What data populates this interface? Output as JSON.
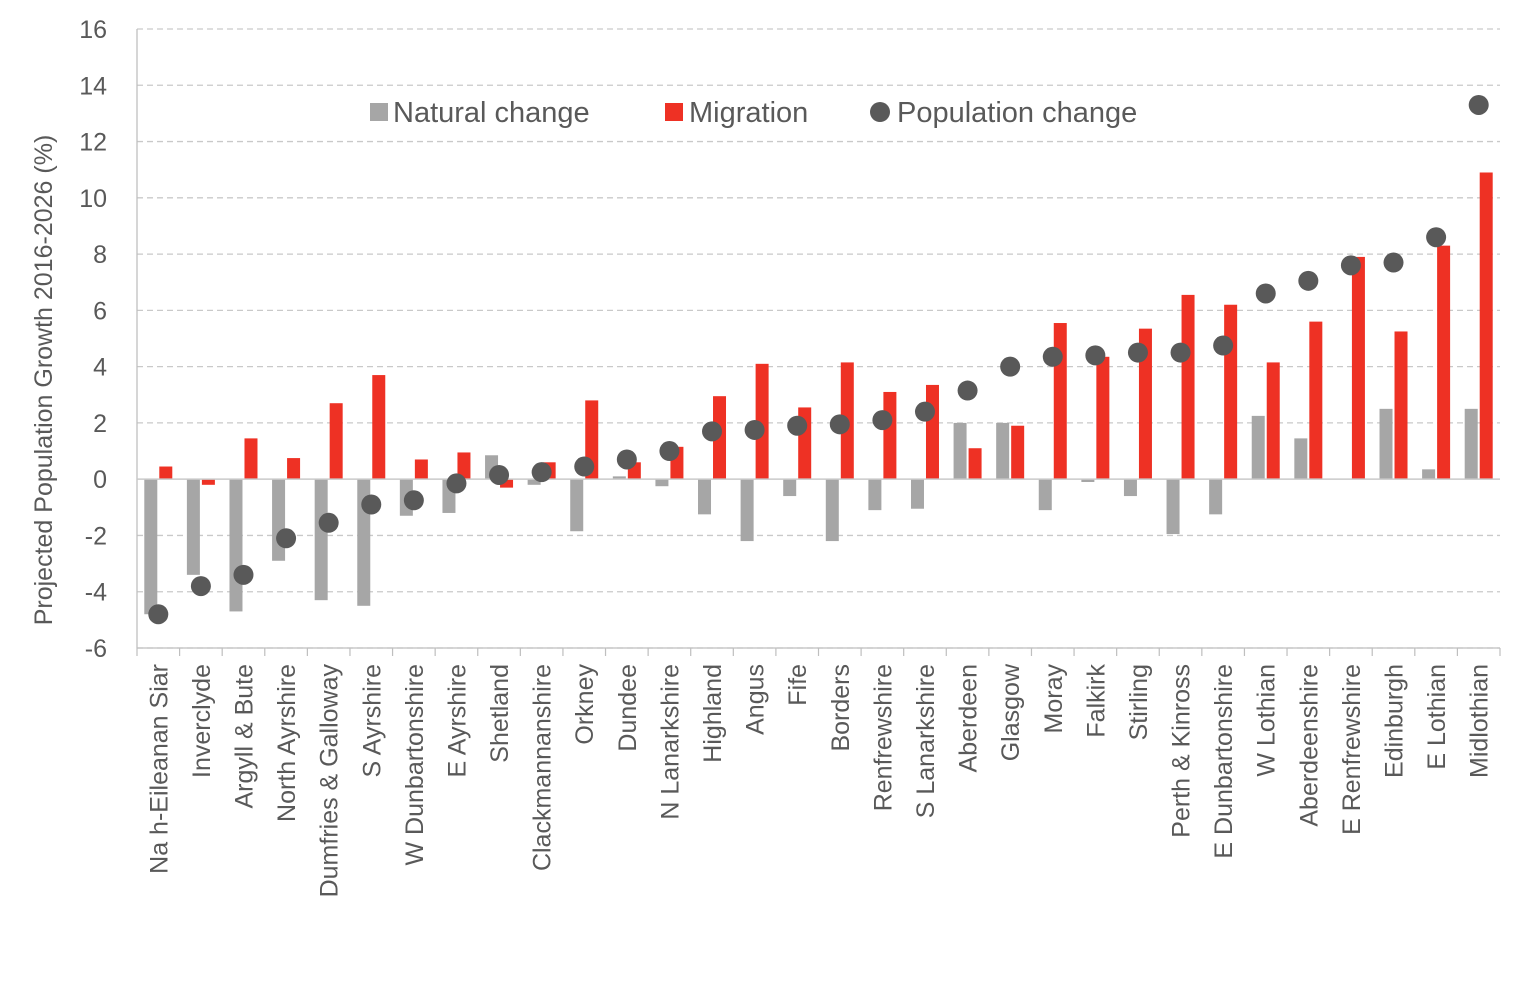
{
  "chart_data": {
    "type": "bar",
    "ylabel": "Projected  Population  Growth 2016-2026 (%)",
    "xlabel": "",
    "ylim": [
      -6,
      16
    ],
    "yticks": [
      -6,
      -4,
      -2,
      0,
      2,
      4,
      6,
      8,
      10,
      12,
      14,
      16
    ],
    "grid": "horizontal dashed",
    "legend_position": "top",
    "categories": [
      "Na h-Eileanan Siar",
      "Inverclyde",
      "Argyll & Bute",
      "North Ayrshire",
      "Dumfries & Galloway",
      "S Ayrshire",
      "W Dunbartonshire",
      "E Ayrshire",
      "Shetland",
      "Clackmannanshire",
      "Orkney",
      "Dundee",
      "N Lanarkshire",
      "Highland",
      "Angus",
      "Fife",
      "Borders",
      "Renfrewshire",
      "S Lanarkshire",
      "Aberdeen",
      "Glasgow",
      "Moray",
      "Falkirk",
      "Stirling",
      "Perth & Kinross",
      "E Dunbartonshire",
      "W Lothian",
      "Aberdeenshire",
      "E Renfrewshire",
      "Edinburgh",
      "E Lothian",
      "Midlothian"
    ],
    "series": [
      {
        "name": "Natural change",
        "kind": "bar",
        "color": "#a6a6a6",
        "values": [
          -4.8,
          -3.4,
          -4.7,
          -2.9,
          -4.3,
          -4.5,
          -1.3,
          -1.2,
          0.85,
          -0.2,
          -1.85,
          0.1,
          -0.25,
          -1.25,
          -2.2,
          -0.6,
          -2.2,
          -1.1,
          -1.05,
          2.0,
          2.0,
          -1.1,
          -0.1,
          -0.6,
          -1.95,
          -1.25,
          2.25,
          1.45,
          0.0,
          2.5,
          0.35,
          2.5
        ]
      },
      {
        "name": "Migration",
        "kind": "bar",
        "color": "#ee3124",
        "values": [
          0.45,
          -0.2,
          1.45,
          0.75,
          2.7,
          3.7,
          0.7,
          0.95,
          -0.3,
          0.6,
          2.8,
          0.6,
          1.15,
          2.95,
          4.1,
          2.55,
          4.15,
          3.1,
          3.35,
          1.1,
          1.9,
          5.55,
          4.35,
          5.35,
          6.55,
          6.2,
          4.15,
          5.6,
          7.9,
          5.25,
          8.3,
          10.9
        ]
      },
      {
        "name": "Population change",
        "kind": "marker",
        "color": "#595959",
        "values": [
          -4.8,
          -3.8,
          -3.4,
          -2.1,
          -1.55,
          -0.9,
          -0.75,
          -0.15,
          0.15,
          0.25,
          0.45,
          0.7,
          1.0,
          1.7,
          1.75,
          1.9,
          1.95,
          2.1,
          2.4,
          3.15,
          4.0,
          4.35,
          4.4,
          4.5,
          4.5,
          4.75,
          6.6,
          7.05,
          7.6,
          7.7,
          8.6,
          13.3
        ]
      }
    ]
  }
}
